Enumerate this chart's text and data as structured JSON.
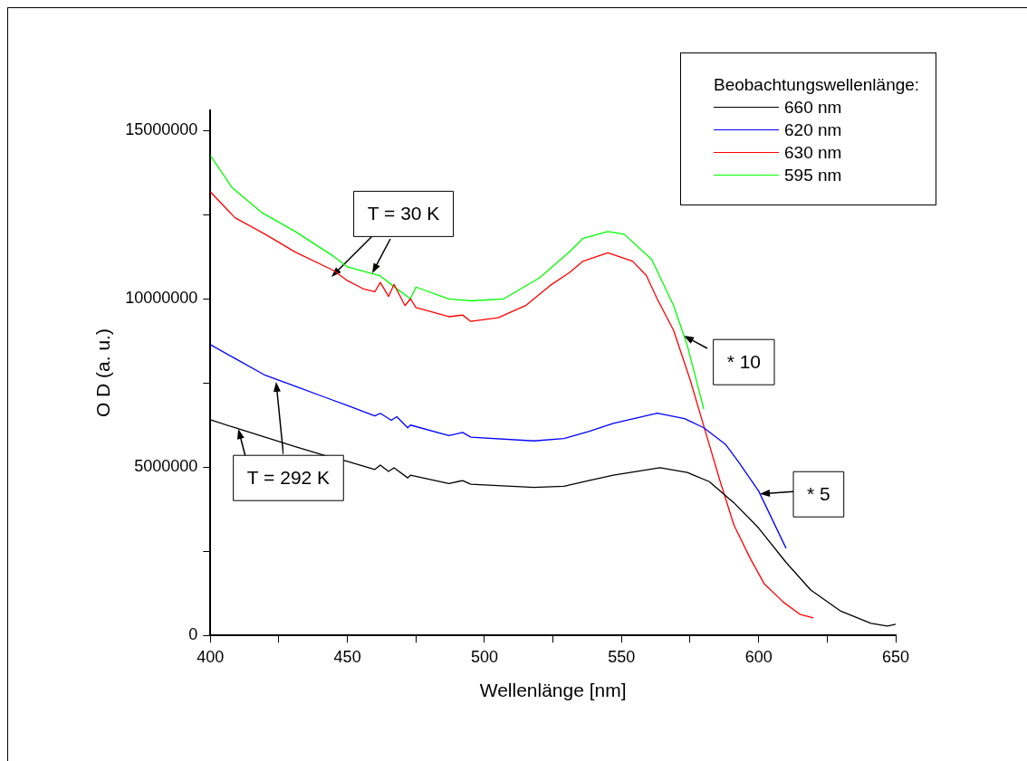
{
  "chart_data": {
    "type": "line",
    "xlabel": "Wellenlänge [nm]",
    "ylabel": "O D (a. u.)",
    "legend_title": "Beobachtungswellenlänge:",
    "legend": "top right",
    "grid": false,
    "marker": "none",
    "line_style": "solid",
    "xlim": [
      400,
      650
    ],
    "xticks": [
      400,
      {
        "value": 425,
        "label": null
      },
      450,
      {
        "value": 475,
        "label": null
      },
      500,
      {
        "value": 525,
        "label": null
      },
      550,
      {
        "value": 575,
        "label": null
      },
      600,
      {
        "value": 625,
        "label": null
      },
      650
    ],
    "ylim": [
      0,
      15600000
    ],
    "yticks": [
      0,
      {
        "value": 2500000,
        "label": null
      },
      5000000,
      {
        "value": 7500000,
        "label": null
      },
      10000000,
      {
        "value": 12500000,
        "label": null
      },
      15000000
    ],
    "series": [
      {
        "name": "660 nm",
        "color": "#000000",
        "x": [
          400,
          409,
          420,
          431,
          442,
          450,
          460,
          462,
          465,
          467,
          472,
          473,
          487,
          492,
          495,
          518,
          529,
          538,
          547,
          564,
          574,
          582,
          591,
          600,
          610,
          619,
          630,
          641,
          647,
          650
        ],
        "values": [
          6410000,
          6170000,
          5890000,
          5610000,
          5340000,
          5170000,
          4930000,
          5060000,
          4870000,
          4980000,
          4680000,
          4760000,
          4510000,
          4600000,
          4490000,
          4400000,
          4430000,
          4600000,
          4760000,
          4980000,
          4840000,
          4570000,
          3940000,
          3190000,
          2170000,
          1350000,
          720000,
          360000,
          280000,
          330000
        ]
      },
      {
        "name": "620 nm",
        "color": "#0000ff",
        "x": [
          400,
          409,
          420,
          431,
          442,
          450,
          460,
          462,
          466,
          468,
          472,
          473,
          487,
          492,
          495,
          518,
          529,
          538,
          547,
          563,
          573,
          580,
          588,
          593,
          600,
          610
        ],
        "values": [
          8640000,
          8230000,
          7730000,
          7400000,
          7070000,
          6830000,
          6520000,
          6600000,
          6390000,
          6500000,
          6170000,
          6250000,
          5940000,
          6030000,
          5890000,
          5780000,
          5850000,
          6060000,
          6300000,
          6600000,
          6440000,
          6170000,
          5670000,
          5120000,
          4290000,
          2590000
        ]
      },
      {
        "name": "630 nm",
        "color": "#ff0000",
        "x": [
          400,
          409,
          420,
          431,
          445,
          450,
          456,
          460,
          462,
          465,
          467,
          471,
          473,
          475,
          487,
          492,
          495,
          505,
          515,
          524,
          531,
          536,
          545,
          554,
          559,
          563,
          569,
          575,
          580,
          586,
          591,
          597,
          602,
          609,
          615,
          620
        ],
        "values": [
          13180000,
          12410000,
          11920000,
          11390000,
          10840000,
          10540000,
          10290000,
          10210000,
          10490000,
          10070000,
          10430000,
          9800000,
          10000000,
          9740000,
          9470000,
          9520000,
          9330000,
          9440000,
          9800000,
          10400000,
          10780000,
          11120000,
          11370000,
          11120000,
          10700000,
          10000000,
          9060000,
          7600000,
          6220000,
          4570000,
          3280000,
          2280000,
          1540000,
          990000,
          630000,
          520000
        ]
      },
      {
        "name": "595 nm",
        "color": "#00ff00",
        "x": [
          400,
          408,
          419,
          431,
          445,
          450,
          462,
          468,
          473,
          475,
          487,
          495,
          507,
          520,
          531,
          536,
          545,
          551,
          561,
          569,
          574,
          580
        ],
        "values": [
          14260000,
          13300000,
          12550000,
          12000000,
          11260000,
          10950000,
          10680000,
          10300000,
          10000000,
          10350000,
          10000000,
          9940000,
          10000000,
          10620000,
          11400000,
          11800000,
          12000000,
          11920000,
          11170000,
          9800000,
          8610000,
          6720000
        ]
      }
    ],
    "annotations": [
      {
        "text": "T = 30 K",
        "x": 458.9,
        "y": 10750000
      },
      {
        "text": "T = 292 K",
        "x": 410.3,
        "y": 6130000
      },
      {
        "text": "* 10",
        "x": 572.8,
        "y": 8900000
      },
      {
        "text": "* 5",
        "x": 600.4,
        "y": 4220000
      }
    ]
  }
}
